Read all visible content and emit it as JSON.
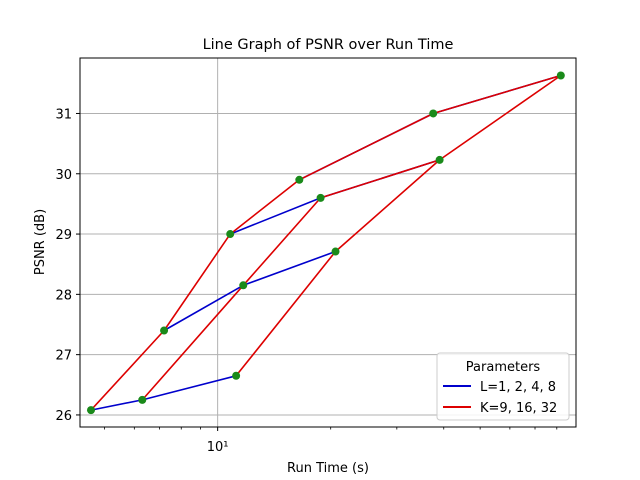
{
  "chart_data": {
    "type": "line",
    "title": "Line Graph of PSNR over Run Time",
    "xlabel": "Run Time (s)",
    "ylabel": "PSNR (dB)",
    "xscale": "log",
    "xlim": [
      4.3,
      90
    ],
    "ylim": [
      25.8,
      31.92
    ],
    "grid": true,
    "major_xticks": [
      {
        "value": 10,
        "label": "10¹"
      }
    ],
    "yticks": [
      26,
      27,
      28,
      29,
      30,
      31
    ],
    "legend": {
      "title": "Parameters",
      "placement": "lower right",
      "entries": [
        "L=1, 2, 4, 8",
        "K=9, 16, 32"
      ]
    },
    "colors": {
      "L": "#0000cc",
      "K": "#dd0000",
      "marker": "#1a8a1a",
      "grid": "#b0b0b0"
    },
    "line_groups": [
      {
        "legend_entry": 0,
        "color": "#0000cc",
        "lines": [
          [
            [
              4.6,
              26.08
            ],
            [
              6.3,
              26.25
            ],
            [
              11.2,
              26.65
            ]
          ],
          [
            [
              7.2,
              27.4
            ],
            [
              11.7,
              28.15
            ],
            [
              20.6,
              28.71
            ]
          ],
          [
            [
              10.8,
              29.0
            ],
            [
              18.8,
              29.6
            ],
            [
              39.0,
              30.23
            ]
          ],
          [
            [
              16.5,
              29.9
            ],
            [
              37.5,
              31.0
            ],
            [
              82.0,
              31.63
            ]
          ]
        ]
      },
      {
        "legend_entry": 1,
        "color": "#dd0000",
        "lines": [
          [
            [
              4.6,
              26.08
            ],
            [
              7.2,
              27.4
            ],
            [
              10.8,
              29.0
            ],
            [
              16.5,
              29.9
            ],
            [
              37.5,
              31.0
            ],
            [
              82.0,
              31.63
            ]
          ],
          [
            [
              6.3,
              26.25
            ],
            [
              11.7,
              28.15
            ],
            [
              18.8,
              29.6
            ],
            [
              39.0,
              30.23
            ],
            [
              82.0,
              31.63
            ]
          ],
          [
            [
              11.2,
              26.65
            ],
            [
              20.6,
              28.71
            ],
            [
              39.0,
              30.23
            ]
          ]
        ]
      }
    ]
  }
}
